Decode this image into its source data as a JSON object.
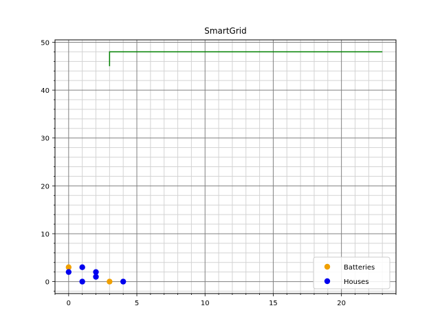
{
  "chart_data": {
    "type": "scatter",
    "title": "SmartGrid",
    "xlabel": "",
    "ylabel": "",
    "xlim": [
      -1,
      24
    ],
    "ylim": [
      -2.5,
      50.5
    ],
    "x_major_ticks": [
      0,
      5,
      10,
      15,
      20
    ],
    "y_major_ticks": [
      0,
      10,
      20,
      30,
      40,
      50
    ],
    "x_minor_step": 1,
    "y_minor_step": 2,
    "grid": true,
    "legend_position": "lower-right",
    "series": [
      {
        "name": "Batteries",
        "kind": "scatter",
        "color": "#f0a000",
        "points": [
          [
            0,
            3
          ],
          [
            3,
            0
          ]
        ]
      },
      {
        "name": "Houses",
        "kind": "scatter",
        "color": "#0000ee",
        "points": [
          [
            0,
            2
          ],
          [
            1,
            3
          ],
          [
            1,
            0
          ],
          [
            2,
            2
          ],
          [
            2,
            1
          ],
          [
            4,
            0
          ]
        ]
      }
    ],
    "lines": [
      {
        "color": "#008000",
        "points": [
          [
            3,
            45
          ],
          [
            3,
            48
          ],
          [
            23,
            48
          ]
        ]
      }
    ]
  }
}
